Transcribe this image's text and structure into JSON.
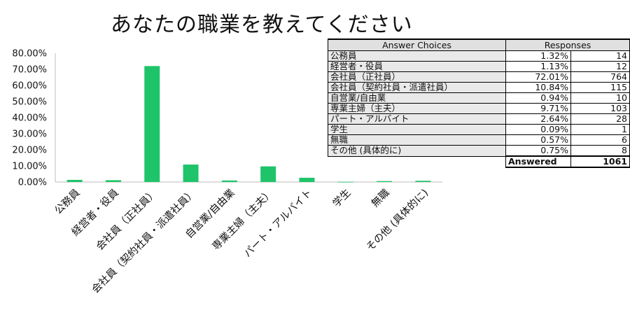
{
  "chart_data": {
    "type": "bar",
    "title": "あなたの職業を教えてください",
    "categories": [
      "公務員",
      "経営者・役員",
      "会社員（正社員）",
      "会社員（契約社員・派遣社員）",
      "自営業/自由業",
      "専業主婦（主夫）",
      "パート・アルバイト",
      "学生",
      "無職",
      "その他 (具体的に)"
    ],
    "values": [
      1.32,
      1.13,
      72.01,
      10.84,
      0.94,
      9.71,
      2.64,
      0.09,
      0.57,
      0.75
    ],
    "ylim": [
      0,
      80
    ],
    "yticks": [
      "0.00%",
      "10.00%",
      "20.00%",
      "30.00%",
      "40.00%",
      "50.00%",
      "60.00%",
      "70.00%",
      "80.00%"
    ],
    "grid": false,
    "bar_color": "#1fc46a"
  },
  "table": {
    "headers": [
      "Answer Choices",
      "Responses"
    ],
    "rows": [
      {
        "choice": "公務員",
        "percent": "1.32%",
        "count": "14"
      },
      {
        "choice": "経営者・役員",
        "percent": "1.13%",
        "count": "12"
      },
      {
        "choice": "会社員（正社員）",
        "percent": "72.01%",
        "count": "764"
      },
      {
        "choice": "会社員（契約社員・派遣社員）",
        "percent": "10.84%",
        "count": "115"
      },
      {
        "choice": "自営業/自由業",
        "percent": "0.94%",
        "count": "10"
      },
      {
        "choice": "専業主婦（主夫）",
        "percent": "9.71%",
        "count": "103"
      },
      {
        "choice": "パート・アルバイト",
        "percent": "2.64%",
        "count": "28"
      },
      {
        "choice": "学生",
        "percent": "0.09%",
        "count": "1"
      },
      {
        "choice": "無職",
        "percent": "0.57%",
        "count": "6"
      },
      {
        "choice": "その他 (具体的に)",
        "percent": "0.75%",
        "count": "8"
      }
    ],
    "answered_label": "Answered",
    "answered_value": "1061"
  }
}
